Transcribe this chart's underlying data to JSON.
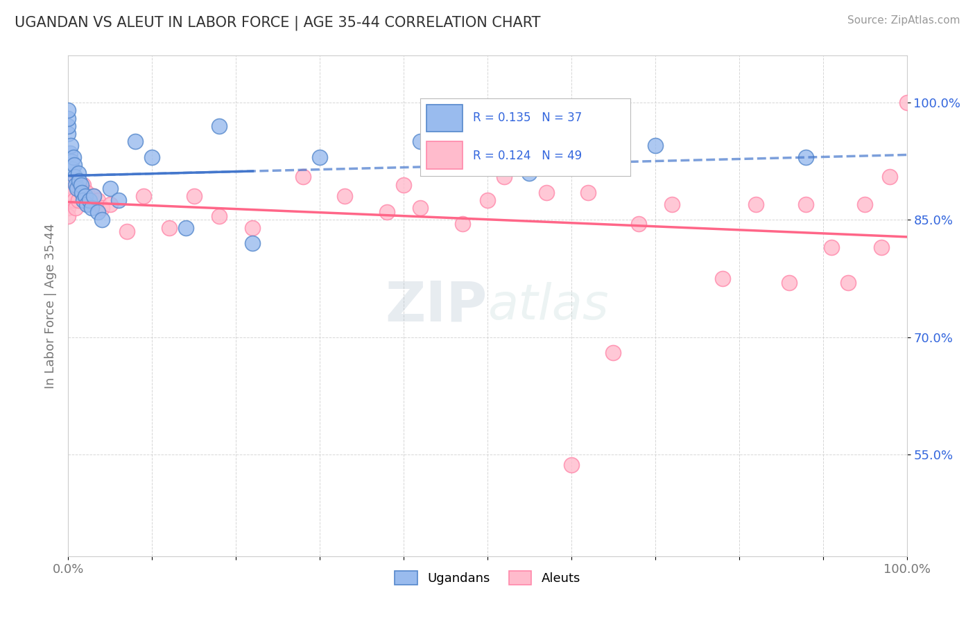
{
  "title": "UGANDAN VS ALEUT IN LABOR FORCE | AGE 35-44 CORRELATION CHART",
  "source_text": "Source: ZipAtlas.com",
  "ylabel": "In Labor Force | Age 35-44",
  "xlim": [
    0.0,
    1.0
  ],
  "ylim": [
    0.42,
    1.06
  ],
  "xtick_positions": [
    0.0,
    0.1,
    0.2,
    0.3,
    0.4,
    0.5,
    0.6,
    0.7,
    0.8,
    0.9,
    1.0
  ],
  "xtick_labels_show": {
    "0.0": "0.0%",
    "1.0": "100.0%"
  },
  "ytick_values": [
    0.55,
    0.7,
    0.85,
    1.0
  ],
  "ytick_labels": [
    "55.0%",
    "70.0%",
    "85.0%",
    "100.0%"
  ],
  "R_ugandan": 0.135,
  "N_ugandan": 37,
  "R_aleut": 0.124,
  "N_aleut": 49,
  "ugandan_face_color": "#99BBEE",
  "ugandan_edge_color": "#5588CC",
  "aleut_face_color": "#FFBBCC",
  "aleut_edge_color": "#FF88AA",
  "ugandan_line_color": "#4477CC",
  "aleut_line_color": "#FF6688",
  "bg_color": "#FFFFFF",
  "grid_color": "#CCCCCC",
  "title_color": "#333333",
  "label_color": "#777777",
  "source_color": "#999999",
  "value_color": "#3366DD",
  "watermark_color": "#BBDDEE",
  "ugandan_x": [
    0.0,
    0.0,
    0.0,
    0.0,
    0.002,
    0.003,
    0.004,
    0.005,
    0.006,
    0.007,
    0.008,
    0.009,
    0.01,
    0.012,
    0.013,
    0.015,
    0.016,
    0.018,
    0.02,
    0.022,
    0.025,
    0.028,
    0.03,
    0.035,
    0.04,
    0.05,
    0.06,
    0.08,
    0.1,
    0.14,
    0.18,
    0.22,
    0.3,
    0.42,
    0.55,
    0.7,
    0.88
  ],
  "ugandan_y": [
    0.96,
    0.97,
    0.98,
    0.99,
    0.935,
    0.945,
    0.925,
    0.915,
    0.93,
    0.92,
    0.905,
    0.895,
    0.89,
    0.91,
    0.9,
    0.895,
    0.885,
    0.875,
    0.88,
    0.87,
    0.875,
    0.865,
    0.88,
    0.86,
    0.85,
    0.89,
    0.875,
    0.95,
    0.93,
    0.84,
    0.97,
    0.82,
    0.93,
    0.95,
    0.91,
    0.945,
    0.93
  ],
  "aleut_x": [
    0.0,
    0.0,
    0.0,
    0.0,
    0.0,
    0.003,
    0.005,
    0.007,
    0.009,
    0.012,
    0.014,
    0.016,
    0.018,
    0.022,
    0.025,
    0.03,
    0.035,
    0.04,
    0.05,
    0.07,
    0.09,
    0.12,
    0.15,
    0.18,
    0.22,
    0.28,
    0.33,
    0.38,
    0.42,
    0.47,
    0.52,
    0.57,
    0.62,
    0.65,
    0.68,
    0.72,
    0.78,
    0.82,
    0.86,
    0.88,
    0.91,
    0.93,
    0.95,
    0.97,
    0.98,
    1.0,
    0.4,
    0.5,
    0.6
  ],
  "aleut_y": [
    0.895,
    0.885,
    0.875,
    0.865,
    0.855,
    0.875,
    0.885,
    0.875,
    0.865,
    0.875,
    0.895,
    0.885,
    0.895,
    0.885,
    0.875,
    0.88,
    0.875,
    0.865,
    0.87,
    0.835,
    0.88,
    0.84,
    0.88,
    0.855,
    0.84,
    0.905,
    0.88,
    0.86,
    0.865,
    0.845,
    0.905,
    0.885,
    0.885,
    0.68,
    0.845,
    0.87,
    0.775,
    0.87,
    0.77,
    0.87,
    0.815,
    0.77,
    0.87,
    0.815,
    0.905,
    1.0,
    0.895,
    0.875,
    0.537
  ],
  "legend_entries": [
    {
      "label": "Ugandans",
      "face": "#99BBEE",
      "edge": "#5588CC"
    },
    {
      "label": "Aleuts",
      "face": "#FFBBCC",
      "edge": "#FF88AA"
    }
  ]
}
